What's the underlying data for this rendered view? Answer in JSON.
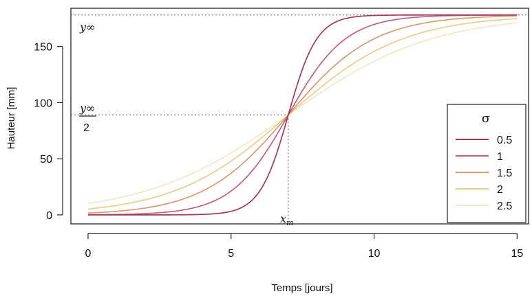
{
  "chart_data": {
    "type": "line",
    "xlabel": "Temps [jours]",
    "ylabel": "Hauteur [mm]",
    "xlim": [
      -0.6,
      15.4
    ],
    "ylim": [
      -8,
      184
    ],
    "x_ticks": [
      0,
      5,
      10,
      15
    ],
    "y_ticks": [
      0,
      50,
      100,
      150
    ],
    "x_tick_labels": [
      "0",
      "5",
      "10",
      "15"
    ],
    "y_tick_labels": [
      "0",
      "50",
      "100",
      "150"
    ],
    "grid": false,
    "legend_position": "right",
    "legend_title": "σ",
    "y_inf": 178,
    "x_m": 7,
    "annotations": {
      "y_inf_label": "y∞",
      "half_numerator": "y∞",
      "half_denominator": "2",
      "xm_base": "x",
      "xm_sub": "m"
    },
    "series": [
      {
        "name": "0.5",
        "sigma": 0.5,
        "color": "#9e3a57"
      },
      {
        "name": "1",
        "sigma": 1.0,
        "color": "#c2607a"
      },
      {
        "name": "1.5",
        "sigma": 1.5,
        "color": "#d99a70"
      },
      {
        "name": "2",
        "sigma": 2.0,
        "color": "#e9cd8e"
      },
      {
        "name": "2.5",
        "sigma": 2.5,
        "color": "#f1e8c8"
      }
    ]
  }
}
